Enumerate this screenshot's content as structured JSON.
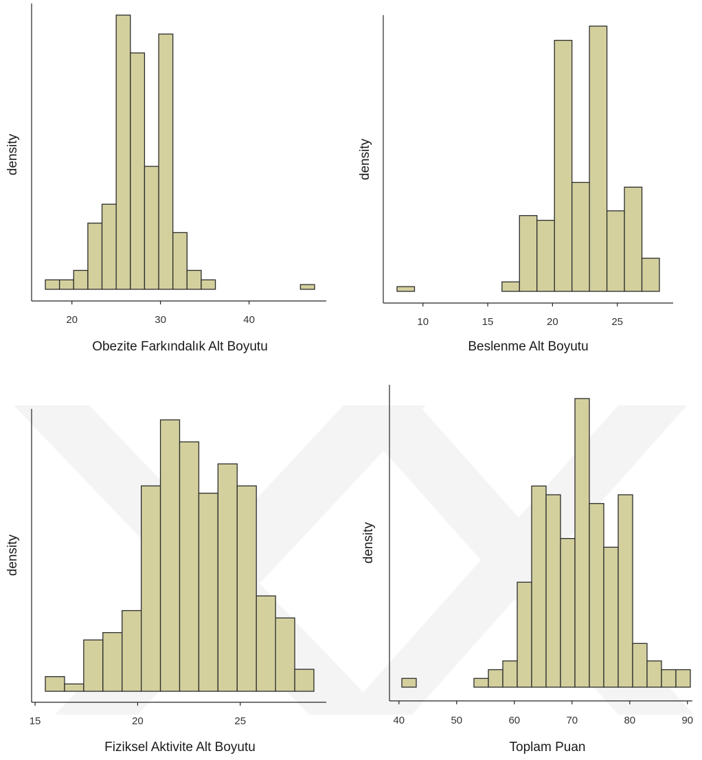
{
  "chart_data": [
    {
      "type": "histogram",
      "xlabel": "Obezite Farkındalık Alt Boyutu",
      "ylabel": "density",
      "xticks": [
        20,
        30,
        40
      ],
      "x_start": 17,
      "binwidth": 1.6,
      "counts": [
        1,
        1,
        2,
        7,
        9,
        29,
        25,
        13,
        27,
        6,
        2,
        1,
        0,
        0,
        0,
        0,
        0,
        0,
        0.5
      ]
    },
    {
      "type": "histogram",
      "xlabel": "Beslenme Alt Boyutu",
      "ylabel": "density",
      "xticks": [
        10,
        15,
        20,
        25
      ],
      "x_start": 8,
      "binwidth": 1.35,
      "counts": [
        1,
        0,
        0,
        0,
        0,
        0,
        2,
        16,
        15,
        53,
        23,
        56,
        17,
        22,
        7
      ]
    },
    {
      "type": "histogram",
      "xlabel": "Fiziksel Aktivite Alt Boyutu",
      "ylabel": "density",
      "xticks": [
        15,
        20,
        25
      ],
      "x_start": 15.5,
      "binwidth": 0.935,
      "counts": [
        2,
        1,
        7,
        8,
        11,
        28,
        37,
        34,
        27,
        31,
        28,
        13,
        10,
        3
      ]
    },
    {
      "type": "histogram",
      "xlabel": "Toplam Puan",
      "ylabel": "density",
      "xticks": [
        40,
        50,
        60,
        70,
        80,
        90
      ],
      "x_start": 40.5,
      "binwidth": 2.5,
      "counts": [
        1,
        0,
        0,
        0,
        0,
        1,
        2,
        3,
        12,
        23,
        22,
        17,
        33,
        21,
        16,
        22,
        5,
        3,
        2,
        2
      ]
    }
  ]
}
